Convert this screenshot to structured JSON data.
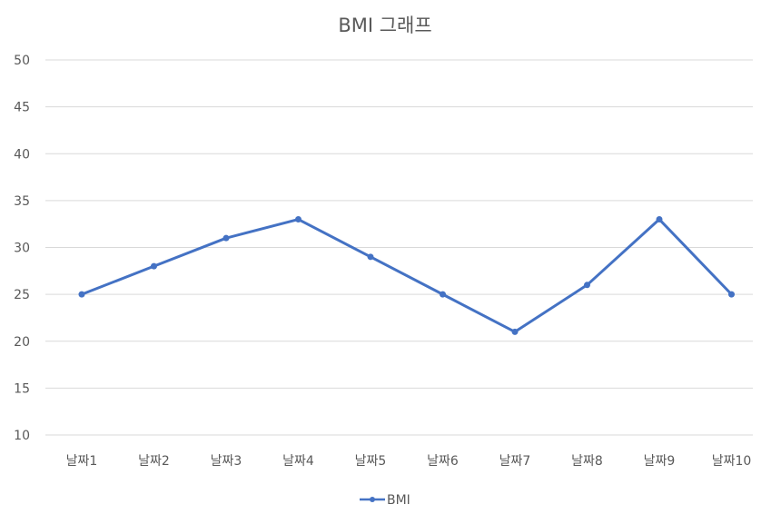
{
  "chart_data": {
    "type": "line",
    "title": "BMI 그래프",
    "xlabel": "",
    "ylabel": "",
    "categories": [
      "날짜1",
      "날짜2",
      "날짜3",
      "날짜4",
      "날짜5",
      "날짜6",
      "날짜7",
      "날짜8",
      "날짜9",
      "날짜10"
    ],
    "series": [
      {
        "name": "BMI",
        "values": [
          25,
          28,
          31,
          33,
          29,
          25,
          21,
          26,
          33,
          25
        ],
        "color": "#4472c4"
      }
    ],
    "ylim": [
      10,
      50
    ],
    "yticks": [
      10,
      15,
      20,
      25,
      30,
      35,
      40,
      45,
      50
    ],
    "grid": true,
    "legend_position": "bottom",
    "markers": true,
    "colors": {
      "line": "#4472c4",
      "grid": "#d9d9d9",
      "text": "#595959",
      "background": "#ffffff"
    }
  }
}
